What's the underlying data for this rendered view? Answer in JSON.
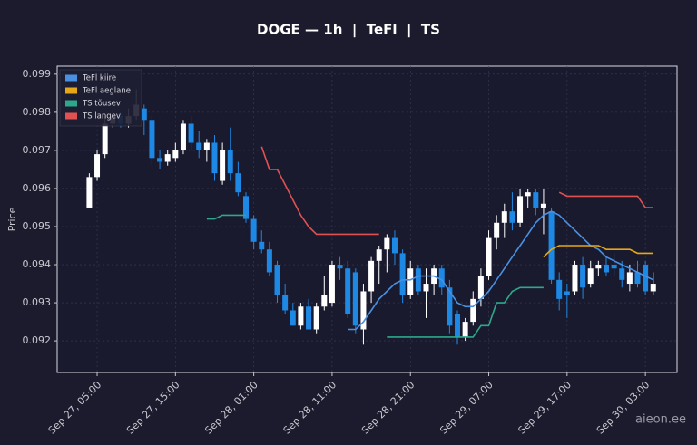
{
  "chart_data": {
    "type": "candlestick",
    "title": "DOGE — 1h  |  TeFl  |  TS",
    "y_label": "Price",
    "watermark": "aieon.ee",
    "categories": [
      null,
      "Sep 27, 05:00",
      null,
      null,
      null,
      null,
      null,
      null,
      null,
      null,
      null,
      "Sep 27, 15:00",
      null,
      null,
      null,
      null,
      null,
      null,
      null,
      null,
      null,
      "Sep 28, 01:00",
      null,
      null,
      null,
      null,
      null,
      null,
      null,
      null,
      null,
      "Sep 28, 11:00",
      null,
      null,
      null,
      null,
      null,
      null,
      null,
      null,
      null,
      "Sep 28, 21:00",
      null,
      null,
      null,
      null,
      null,
      null,
      null,
      null,
      null,
      "Sep 29, 07:00",
      null,
      null,
      null,
      null,
      null,
      null,
      null,
      null,
      null,
      "Sep 29, 17:00",
      null,
      null,
      null,
      null,
      null,
      null,
      null,
      null,
      null,
      "Sep 30, 03:00",
      null
    ],
    "open": [
      0.0955,
      0.0963,
      0.0969,
      0.0977,
      0.0979,
      0.0977,
      0.0979,
      0.0981,
      0.0978,
      0.0968,
      0.0967,
      0.0968,
      0.097,
      0.0977,
      0.0972,
      0.097,
      0.0972,
      0.0962,
      0.097,
      0.0964,
      0.0958,
      0.0952,
      0.0946,
      0.0944,
      0.094,
      0.0932,
      0.0928,
      0.0924,
      0.0929,
      0.0923,
      0.0929,
      0.093,
      0.094,
      0.0939,
      0.0938,
      0.0923,
      0.0933,
      0.0941,
      0.0944,
      0.0947,
      0.0943,
      0.0932,
      0.0939,
      0.0933,
      0.0935,
      0.0939,
      0.0934,
      0.0927,
      0.0921,
      0.0925,
      0.0931,
      0.0937,
      0.0947,
      0.0951,
      0.0954,
      0.0951,
      0.0958,
      0.0959,
      0.0955,
      0.0954,
      0.0936,
      0.0933,
      0.0933,
      0.094,
      0.0935,
      0.0939,
      0.094,
      0.094,
      0.0939,
      0.0935,
      0.0938,
      0.094,
      0.0933
    ],
    "high": [
      0.0964,
      0.097,
      0.0979,
      0.0981,
      0.098,
      0.0981,
      0.0986,
      0.0982,
      0.0979,
      0.097,
      0.097,
      0.0972,
      0.0978,
      0.0979,
      0.0975,
      0.0973,
      0.0974,
      0.0972,
      0.0976,
      0.0967,
      0.0959,
      0.0953,
      0.0949,
      0.0946,
      0.0941,
      0.0935,
      0.093,
      0.093,
      0.0931,
      0.093,
      0.0937,
      0.0941,
      0.0942,
      0.0941,
      0.0939,
      0.0935,
      0.0942,
      0.0945,
      0.0948,
      0.0949,
      0.0944,
      0.0941,
      0.094,
      0.0939,
      0.094,
      0.094,
      0.0936,
      0.0928,
      0.0926,
      0.0933,
      0.0939,
      0.0949,
      0.0953,
      0.0956,
      0.0959,
      0.096,
      0.096,
      0.096,
      0.096,
      0.0955,
      0.0938,
      0.0935,
      0.0941,
      0.0942,
      0.0941,
      0.0941,
      0.0942,
      0.0943,
      0.0941,
      0.094,
      0.0941,
      0.0941,
      0.0938
    ],
    "low": [
      0.0955,
      0.0962,
      0.0968,
      0.0976,
      0.0976,
      0.0976,
      0.0978,
      0.0974,
      0.0966,
      0.0965,
      0.0966,
      0.0967,
      0.0969,
      0.097,
      0.0968,
      0.0967,
      0.0962,
      0.0961,
      0.0962,
      0.0958,
      0.0951,
      0.0944,
      0.0943,
      0.0937,
      0.093,
      0.0927,
      0.0924,
      0.0923,
      0.0923,
      0.0922,
      0.0928,
      0.0929,
      0.0936,
      0.0926,
      0.0922,
      0.0919,
      0.093,
      0.0935,
      0.0938,
      0.094,
      0.093,
      0.0931,
      0.0932,
      0.0926,
      0.0932,
      0.0932,
      0.0922,
      0.0919,
      0.092,
      0.0924,
      0.0929,
      0.0936,
      0.0944,
      0.0947,
      0.0949,
      0.095,
      0.0955,
      0.0953,
      0.0948,
      0.0935,
      0.0928,
      0.0926,
      0.0932,
      0.0931,
      0.0934,
      0.0937,
      0.0937,
      0.0937,
      0.0934,
      0.0933,
      0.0934,
      0.0932,
      0.0932
    ],
    "close": [
      0.0963,
      0.0969,
      0.0977,
      0.0979,
      0.0977,
      0.0979,
      0.0982,
      0.0978,
      0.0968,
      0.0967,
      0.0969,
      0.097,
      0.0977,
      0.0972,
      0.097,
      0.0972,
      0.0964,
      0.097,
      0.0964,
      0.0959,
      0.0952,
      0.0946,
      0.0944,
      0.0938,
      0.0932,
      0.0928,
      0.0924,
      0.0929,
      0.0923,
      0.0929,
      0.0932,
      0.094,
      0.0939,
      0.0927,
      0.0924,
      0.0933,
      0.0941,
      0.0944,
      0.0947,
      0.0943,
      0.0932,
      0.0939,
      0.0933,
      0.0935,
      0.0939,
      0.0934,
      0.0924,
      0.0921,
      0.0925,
      0.0931,
      0.0937,
      0.0947,
      0.0951,
      0.0954,
      0.0951,
      0.0958,
      0.0959,
      0.0955,
      0.0956,
      0.0936,
      0.0931,
      0.0932,
      0.094,
      0.0934,
      0.0939,
      0.094,
      0.0938,
      0.0939,
      0.0936,
      0.0938,
      0.0935,
      0.0933,
      0.0935
    ],
    "up_color": "#ffffff",
    "down_color": "#1e88e5",
    "series": [
      {
        "name": "TeFl kiire",
        "color": "#4a90e2",
        "values": [
          null,
          null,
          null,
          null,
          null,
          null,
          null,
          null,
          null,
          null,
          null,
          null,
          null,
          null,
          null,
          null,
          null,
          null,
          null,
          null,
          null,
          null,
          null,
          null,
          null,
          null,
          null,
          null,
          null,
          null,
          null,
          null,
          null,
          0.0923,
          0.0923,
          0.0925,
          0.0928,
          0.0931,
          0.0933,
          0.0935,
          0.0936,
          0.0936,
          0.0937,
          0.0937,
          0.0937,
          0.0936,
          0.0933,
          0.093,
          0.0929,
          0.0929,
          0.0931,
          0.0933,
          0.0936,
          0.0939,
          0.0942,
          0.0945,
          0.0948,
          0.0951,
          0.0953,
          0.0954,
          0.0953,
          0.0951,
          0.0949,
          0.0947,
          0.0945,
          0.0944,
          0.0942,
          0.0941,
          0.094,
          0.0939,
          0.0938,
          0.0937,
          0.0936
        ]
      },
      {
        "name": "TeFl aeglane",
        "color": "#e6a817",
        "values": [
          null,
          null,
          null,
          null,
          null,
          null,
          null,
          null,
          null,
          null,
          null,
          null,
          null,
          null,
          null,
          null,
          null,
          null,
          null,
          null,
          null,
          null,
          null,
          null,
          null,
          null,
          null,
          null,
          null,
          null,
          null,
          null,
          null,
          null,
          null,
          null,
          null,
          null,
          null,
          null,
          null,
          null,
          null,
          null,
          null,
          null,
          null,
          null,
          null,
          null,
          null,
          null,
          null,
          null,
          null,
          null,
          null,
          null,
          0.0942,
          0.0944,
          0.0945,
          0.0945,
          0.0945,
          0.0945,
          0.0945,
          0.0945,
          0.0944,
          0.0944,
          0.0944,
          0.0944,
          0.0943,
          0.0943,
          0.0943
        ]
      },
      {
        "name": "TS tõusev",
        "color": "#2ea88a",
        "values": [
          null,
          null,
          null,
          null,
          null,
          null,
          null,
          null,
          null,
          null,
          null,
          null,
          null,
          null,
          null,
          0.0952,
          0.0952,
          0.0953,
          0.0953,
          0.0953,
          0.0953,
          null,
          null,
          null,
          null,
          null,
          null,
          null,
          null,
          null,
          null,
          null,
          null,
          null,
          null,
          null,
          null,
          null,
          0.0921,
          0.0921,
          0.0921,
          0.0921,
          0.0921,
          0.0921,
          0.0921,
          0.0921,
          0.0921,
          0.0921,
          0.0921,
          0.0921,
          0.0924,
          0.0924,
          0.093,
          0.093,
          0.0933,
          0.0934,
          0.0934,
          0.0934,
          0.0934,
          null,
          null,
          null,
          null,
          null,
          null,
          null,
          null,
          null,
          null,
          null,
          null,
          null,
          null
        ]
      },
      {
        "name": "TS langev",
        "color": "#e05252",
        "values": [
          null,
          null,
          null,
          null,
          null,
          null,
          null,
          null,
          null,
          null,
          null,
          null,
          null,
          null,
          null,
          null,
          null,
          null,
          null,
          null,
          null,
          null,
          0.0971,
          0.0965,
          0.0965,
          0.0961,
          0.0957,
          0.0953,
          0.095,
          0.0948,
          0.0948,
          0.0948,
          0.0948,
          0.0948,
          0.0948,
          0.0948,
          0.0948,
          0.0948,
          null,
          null,
          null,
          null,
          null,
          null,
          null,
          null,
          null,
          null,
          null,
          null,
          null,
          null,
          null,
          null,
          null,
          null,
          null,
          null,
          null,
          null,
          0.0959,
          0.0958,
          0.0958,
          0.0958,
          0.0958,
          0.0958,
          0.0958,
          0.0958,
          0.0958,
          0.0958,
          0.0958,
          0.0955,
          0.0955
        ]
      }
    ],
    "ylim": [
      0.09117,
      0.09921
    ],
    "yticks": [
      0.092,
      0.093,
      0.094,
      0.095,
      0.096,
      0.097,
      0.098,
      0.099
    ],
    "grid": true,
    "legend": "upper left"
  }
}
